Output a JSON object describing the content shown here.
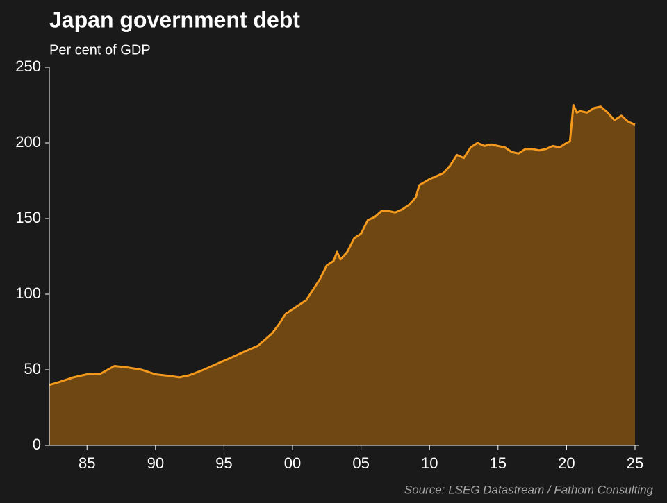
{
  "chart_data": {
    "type": "area",
    "title": "Japan government debt",
    "subtitle": "Per cent of GDP",
    "source": "Source: LSEG Datastream / Fathom Consulting",
    "color": "#f39a1e",
    "fill": "#6e4713",
    "x": [
      1982.25,
      1983,
      1984,
      1985,
      1986,
      1987,
      1988,
      1989,
      1990,
      1991,
      1991.75,
      1992.5,
      1993.5,
      1994.5,
      1995.5,
      1996.5,
      1997.5,
      1998.5,
      1999,
      1999.5,
      2000,
      2001,
      2001.5,
      2002,
      2002.5,
      2003,
      2003.25,
      2003.5,
      2004,
      2004.5,
      2005,
      2005.5,
      2006,
      2006.5,
      2007,
      2007.5,
      2008,
      2008.5,
      2009,
      2009.25,
      2010,
      2010.5,
      2011,
      2011.5,
      2012,
      2012.5,
      2013,
      2013.5,
      2014,
      2014.5,
      2015,
      2015.5,
      2016,
      2016.5,
      2017,
      2017.5,
      2018,
      2018.5,
      2019,
      2019.5,
      2020,
      2020.25,
      2020.5,
      2020.75,
      2021,
      2021.5,
      2022,
      2022.5,
      2023,
      2023.5,
      2024,
      2024.5,
      2025
    ],
    "values": [
      40,
      42,
      45,
      47,
      47.5,
      52.5,
      51.5,
      50,
      47,
      46,
      45,
      46.5,
      50,
      54,
      58,
      62,
      66,
      74,
      80,
      87,
      90,
      96,
      103,
      110,
      119,
      122,
      128,
      123,
      128,
      137,
      140,
      149,
      151,
      155,
      155,
      154,
      156,
      159,
      164,
      172,
      176,
      178,
      180,
      185,
      192,
      190,
      197,
      200,
      198,
      199,
      198,
      197,
      194,
      193,
      196,
      196,
      195,
      196,
      198,
      197,
      200,
      201,
      225,
      220,
      221,
      220,
      223,
      224,
      220,
      215,
      218,
      214,
      212
    ],
    "xlim": [
      1982.25,
      2025
    ],
    "ylim": [
      0,
      250
    ],
    "xticks": [
      {
        "value": 1985,
        "label": "85"
      },
      {
        "value": 1990,
        "label": "90"
      },
      {
        "value": 1995,
        "label": "95"
      },
      {
        "value": 2000,
        "label": "00"
      },
      {
        "value": 2005,
        "label": "05"
      },
      {
        "value": 2010,
        "label": "10"
      },
      {
        "value": 2015,
        "label": "15"
      },
      {
        "value": 2020,
        "label": "20"
      },
      {
        "value": 2025,
        "label": "25"
      }
    ],
    "yticks": [
      0,
      50,
      100,
      150,
      200,
      250
    ]
  }
}
